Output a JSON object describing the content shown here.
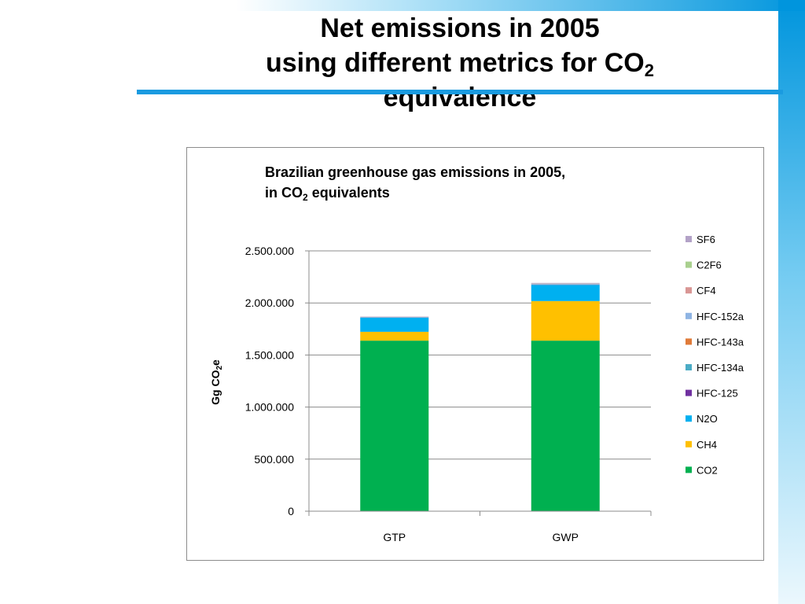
{
  "slide": {
    "title_line1": "Net emissions in 2005",
    "title_line2_pre": "using different metrics for CO",
    "title_line2_sub": "2",
    "title_line3": "equivalence"
  },
  "chart_title": {
    "line1": "Brazilian greenhouse gas emissions in 2005,",
    "line2_pre": "in CO",
    "line2_sub": "2",
    "line2_post": " equivalents"
  },
  "chart_data": {
    "type": "bar",
    "stacked": true,
    "title": "Brazilian greenhouse gas emissions in 2005, in CO2 equivalents",
    "xlabel": "",
    "ylabel": "Gg CO2e",
    "ylabel_pre": "Gg CO",
    "ylabel_sub": "2",
    "ylabel_post": "e",
    "ylim": [
      0,
      2500000
    ],
    "yticks": [
      0,
      500000,
      1000000,
      1500000,
      2000000,
      2500000
    ],
    "ytick_labels": [
      "0",
      "500.000",
      "1.000.000",
      "1.500.000",
      "2.000.000",
      "2.500.000"
    ],
    "categories": [
      "GTP",
      "GWP"
    ],
    "legend_position": "right",
    "series": [
      {
        "name": "CO2",
        "color": "#00b050",
        "values": [
          1638000,
          1638000
        ]
      },
      {
        "name": "CH4",
        "color": "#ffc000",
        "values": [
          85000,
          380000
        ]
      },
      {
        "name": "N2O",
        "color": "#00b0f0",
        "values": [
          135000,
          155000
        ]
      },
      {
        "name": "HFC-125",
        "color": "#7030a0",
        "values": [
          1000,
          1500
        ]
      },
      {
        "name": "HFC-134a",
        "color": "#4bacc6",
        "values": [
          1500,
          2000
        ]
      },
      {
        "name": "HFC-143a",
        "color": "#e07b39",
        "values": [
          500,
          1000
        ]
      },
      {
        "name": "HFC-152a",
        "color": "#8eb4e3",
        "values": [
          4000,
          6000
        ]
      },
      {
        "name": "CF4",
        "color": "#d99694",
        "values": [
          1000,
          1500
        ]
      },
      {
        "name": "C2F6",
        "color": "#a9d08e",
        "values": [
          500,
          1000
        ]
      },
      {
        "name": "SF6",
        "color": "#b3a2c7",
        "values": [
          3000,
          6000
        ]
      }
    ]
  }
}
